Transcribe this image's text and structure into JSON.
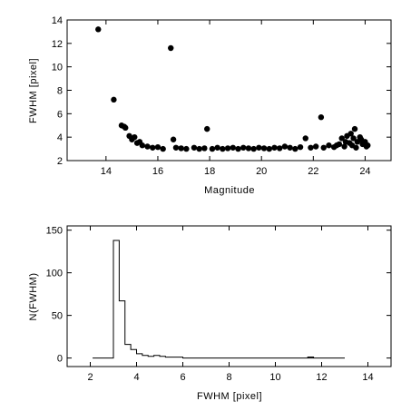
{
  "chart_data": [
    {
      "type": "scatter",
      "title": "",
      "xlabel": "Magnitude",
      "ylabel": "FWHM [pixel]",
      "xlim": [
        12.5,
        25
      ],
      "ylim": [
        2,
        14
      ],
      "xticks": [
        14,
        16,
        18,
        20,
        22,
        24
      ],
      "yticks": [
        2,
        4,
        6,
        8,
        10,
        12,
        14
      ],
      "grid": false,
      "marker_color": "#000000",
      "series": [
        {
          "points": [
            [
              13.7,
              13.2
            ],
            [
              14.3,
              7.2
            ],
            [
              14.6,
              5.0
            ],
            [
              14.7,
              4.9
            ],
            [
              14.75,
              4.8
            ],
            [
              14.9,
              4.1
            ],
            [
              15.0,
              3.8
            ],
            [
              15.1,
              4.0
            ],
            [
              15.2,
              3.5
            ],
            [
              15.3,
              3.6
            ],
            [
              15.4,
              3.3
            ],
            [
              15.6,
              3.2
            ],
            [
              15.8,
              3.1
            ],
            [
              16.0,
              3.15
            ],
            [
              16.2,
              3.0
            ],
            [
              16.5,
              11.6
            ],
            [
              16.6,
              3.8
            ],
            [
              16.7,
              3.1
            ],
            [
              16.9,
              3.05
            ],
            [
              17.1,
              3.0
            ],
            [
              17.4,
              3.1
            ],
            [
              17.6,
              3.0
            ],
            [
              17.8,
              3.05
            ],
            [
              17.9,
              4.7
            ],
            [
              18.1,
              3.0
            ],
            [
              18.3,
              3.1
            ],
            [
              18.5,
              3.0
            ],
            [
              18.7,
              3.05
            ],
            [
              18.9,
              3.1
            ],
            [
              19.1,
              3.0
            ],
            [
              19.3,
              3.1
            ],
            [
              19.5,
              3.05
            ],
            [
              19.7,
              3.0
            ],
            [
              19.9,
              3.1
            ],
            [
              20.1,
              3.05
            ],
            [
              20.3,
              3.0
            ],
            [
              20.5,
              3.1
            ],
            [
              20.7,
              3.05
            ],
            [
              20.9,
              3.2
            ],
            [
              21.1,
              3.1
            ],
            [
              21.3,
              3.0
            ],
            [
              21.5,
              3.15
            ],
            [
              21.7,
              3.9
            ],
            [
              21.9,
              3.1
            ],
            [
              22.1,
              3.2
            ],
            [
              22.3,
              5.7
            ],
            [
              22.4,
              3.1
            ],
            [
              22.6,
              3.3
            ],
            [
              22.8,
              3.15
            ],
            [
              23.0,
              3.4
            ],
            [
              23.1,
              3.9
            ],
            [
              23.2,
              3.2
            ],
            [
              23.3,
              4.1
            ],
            [
              23.4,
              3.5
            ],
            [
              23.5,
              3.3
            ],
            [
              23.6,
              4.7
            ],
            [
              23.7,
              3.6
            ],
            [
              23.8,
              4.0
            ],
            [
              23.9,
              3.4
            ],
            [
              24.0,
              3.6
            ],
            [
              24.1,
              3.3
            ],
            [
              23.55,
              3.9
            ],
            [
              23.25,
              3.6
            ],
            [
              22.9,
              3.3
            ],
            [
              23.65,
              3.1
            ],
            [
              23.85,
              3.8
            ],
            [
              24.05,
              3.2
            ],
            [
              23.45,
              4.3
            ]
          ]
        }
      ]
    },
    {
      "type": "histogram",
      "title": "",
      "xlabel": "FWHM [pixel]",
      "ylabel": "N(FWHM)",
      "xlim": [
        1,
        15
      ],
      "ylim": [
        -10,
        155
      ],
      "xticks": [
        2,
        4,
        6,
        8,
        10,
        12,
        14
      ],
      "yticks": [
        0,
        50,
        100,
        150
      ],
      "grid": false,
      "line_color": "#000000",
      "bin_width": 0.25,
      "bin_start": 3.0,
      "counts": [
        138,
        67,
        16,
        10,
        5,
        3,
        2,
        3,
        2,
        1,
        1,
        1
      ],
      "baseline_range": [
        2.1,
        13.0
      ]
    }
  ]
}
